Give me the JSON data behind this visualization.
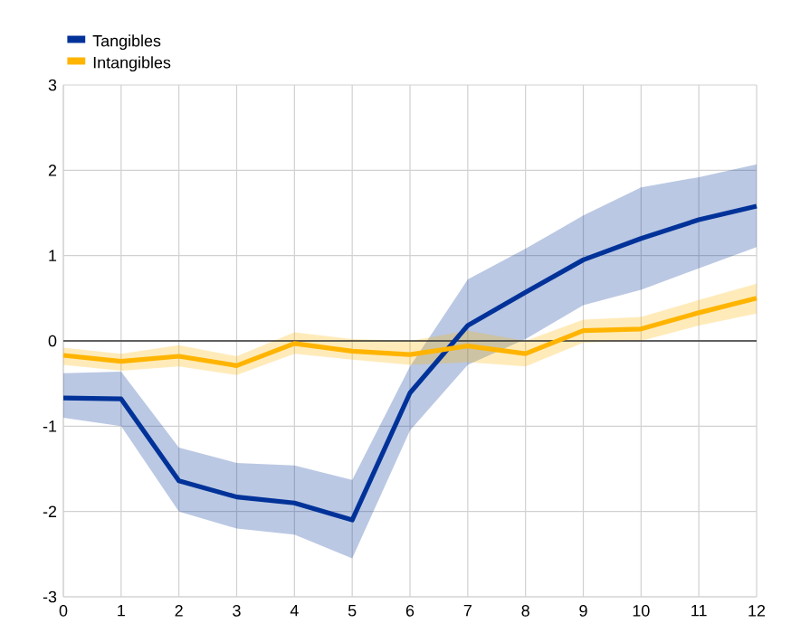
{
  "chart_data": {
    "type": "line",
    "x": [
      0,
      1,
      2,
      3,
      4,
      5,
      6,
      7,
      8,
      9,
      10,
      11,
      12
    ],
    "series": [
      {
        "name": "Tangibles",
        "color": "#003299",
        "values": [
          -0.67,
          -0.68,
          -1.64,
          -1.83,
          -1.9,
          -2.1,
          -0.61,
          0.18,
          0.57,
          0.95,
          1.2,
          1.42,
          1.58
        ],
        "lower": [
          -0.9,
          -1.0,
          -2.0,
          -2.2,
          -2.27,
          -2.55,
          -1.05,
          -0.28,
          0.02,
          0.42,
          0.6,
          0.85,
          1.1
        ],
        "upper": [
          -0.38,
          -0.36,
          -1.25,
          -1.43,
          -1.46,
          -1.63,
          -0.3,
          0.72,
          1.08,
          1.47,
          1.8,
          1.92,
          2.07
        ]
      },
      {
        "name": "Intangibles",
        "color": "#ffb400",
        "values": [
          -0.17,
          -0.24,
          -0.18,
          -0.29,
          -0.03,
          -0.12,
          -0.16,
          -0.06,
          -0.15,
          0.12,
          0.14,
          0.33,
          0.5
        ],
        "lower": [
          -0.28,
          -0.35,
          -0.3,
          -0.4,
          -0.15,
          -0.22,
          -0.28,
          -0.25,
          -0.3,
          -0.02,
          0.0,
          0.18,
          0.32
        ],
        "upper": [
          -0.08,
          -0.15,
          -0.05,
          -0.18,
          0.1,
          0.02,
          0.0,
          0.12,
          0.0,
          0.25,
          0.28,
          0.48,
          0.67
        ]
      }
    ],
    "xlim": [
      0,
      12
    ],
    "xticks": [
      0,
      1,
      2,
      3,
      4,
      5,
      6,
      7,
      8,
      9,
      10,
      11,
      12
    ],
    "ylim": [
      -3,
      3
    ],
    "yticks": [
      -3,
      -2,
      -1,
      0,
      1,
      2,
      3
    ],
    "ref_lines": [
      {
        "axis": "y",
        "value": 0,
        "color": "#333333"
      }
    ],
    "grid": true,
    "legend": "top left",
    "marker": "none",
    "line_style": "solid"
  }
}
